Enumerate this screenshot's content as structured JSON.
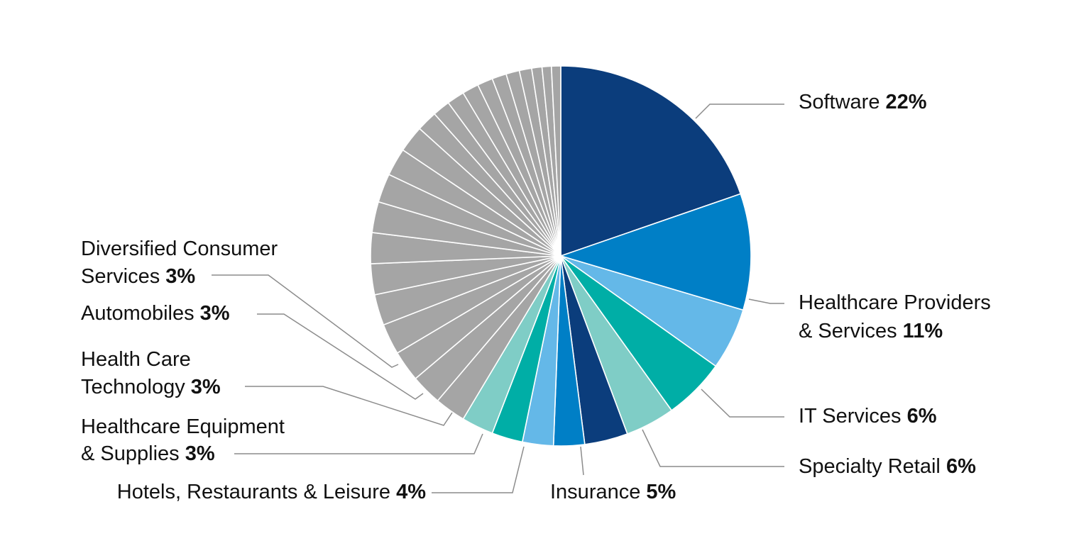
{
  "chart_data": {
    "type": "pie",
    "title": "",
    "colors": {
      "navy": "#0b3d7c",
      "blue": "#007fc6",
      "sky": "#64b8e8",
      "teal": "#00aea6",
      "mint": "#7fcdc6",
      "gray": "#a5a5a5"
    },
    "labeled_slices": [
      {
        "name": "Software",
        "pct_label": "22%",
        "value": 22.5,
        "color": "navy"
      },
      {
        "name": "Healthcare Providers & Services",
        "name_lines": [
          "Healthcare Providers",
          "& Services"
        ],
        "pct_label": "11%",
        "value": 11.3,
        "color": "blue"
      },
      {
        "name": "IT Services",
        "pct_label": "6%",
        "value": 6.0,
        "color": "sky"
      },
      {
        "name": "Specialty Retail",
        "pct_label": "6%",
        "value": 6.0,
        "color": "teal"
      },
      {
        "name": "Insurance",
        "pct_label": "5%",
        "value": 4.8,
        "color": "mint"
      },
      {
        "name": "Hotels, Restaurants & Leisure",
        "pct_label": "4%",
        "value": 4.2,
        "color": "navy"
      },
      {
        "name": "Healthcare Equipment & Supplies",
        "name_lines": [
          "Healthcare Equipment",
          "& Supplies"
        ],
        "pct_label": "3%",
        "value": 3.0,
        "color": "blue"
      },
      {
        "name": "Health Care Technology",
        "name_lines": [
          "Health Care",
          "Technology"
        ],
        "pct_label": "3%",
        "value": 3.0,
        "color": "sky"
      },
      {
        "name": "Automobiles",
        "pct_label": "3%",
        "value": 3.0,
        "color": "teal"
      },
      {
        "name": "Diversified Consumer Services",
        "name_lines": [
          "Diversified Consumer",
          "Services"
        ],
        "pct_label": "3%",
        "value": 3.1,
        "color": "mint"
      }
    ],
    "other_slices": {
      "color": "gray",
      "values": [
        3.0,
        3.0,
        3.0,
        3.0,
        3.0,
        3.0,
        3.0,
        3.0,
        2.8,
        2.7,
        2.6,
        2.0,
        1.7,
        1.7,
        1.6,
        1.5,
        1.4,
        1.3,
        1.2,
        1.0,
        0.9,
        0.9
      ]
    }
  }
}
